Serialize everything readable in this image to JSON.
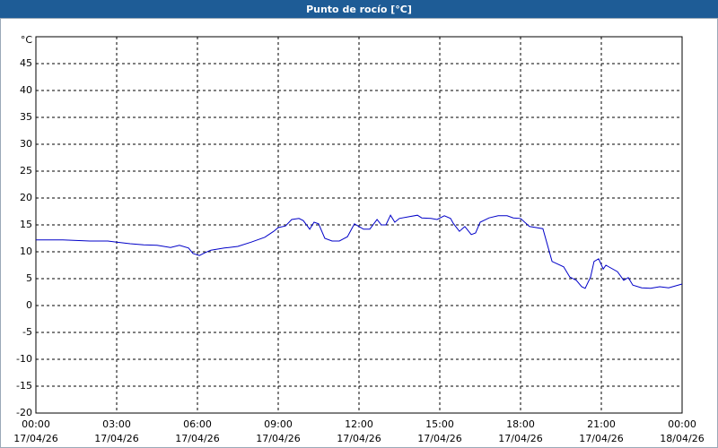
{
  "chart_data": {
    "type": "line",
    "title": "Punto de rocío [°C]",
    "y_unit": "°C",
    "ylim": [
      -20,
      50
    ],
    "yticks": [
      -20,
      -15,
      -10,
      -5,
      0,
      5,
      10,
      15,
      20,
      25,
      30,
      35,
      40,
      45
    ],
    "xlim": [
      0,
      24
    ],
    "xticks": [
      {
        "value": 0,
        "label": "00:00",
        "date": "17/04/26"
      },
      {
        "value": 3,
        "label": "03:00",
        "date": "17/04/26"
      },
      {
        "value": 6,
        "label": "06:00",
        "date": "17/04/26"
      },
      {
        "value": 9,
        "label": "09:00",
        "date": "17/04/26"
      },
      {
        "value": 12,
        "label": "12:00",
        "date": "17/04/26"
      },
      {
        "value": 15,
        "label": "15:00",
        "date": "17/04/26"
      },
      {
        "value": 18,
        "label": "18:00",
        "date": "17/04/26"
      },
      {
        "value": 21,
        "label": "21:00",
        "date": "17/04/26"
      },
      {
        "value": 24,
        "label": "00:00",
        "date": "18/04/26"
      }
    ],
    "grid": true,
    "series": [
      {
        "color": "#0000c8",
        "x": [
          0,
          1,
          2,
          2.67,
          3,
          3.5,
          4,
          4.5,
          5,
          5.33,
          5.67,
          5.83,
          6.07,
          6.27,
          6.5,
          7,
          7.5,
          8,
          8.5,
          8.83,
          9,
          9.27,
          9.5,
          9.77,
          9.93,
          10.17,
          10.33,
          10.5,
          10.73,
          11,
          11.27,
          11.57,
          11.83,
          12,
          12.17,
          12.4,
          12.67,
          12.83,
          13,
          13.17,
          13.33,
          13.5,
          13.83,
          14.17,
          14.33,
          14.67,
          14.9,
          15.17,
          15.4,
          15.5,
          15.73,
          15.93,
          16.17,
          16.33,
          16.5,
          16.83,
          17.17,
          17.5,
          17.73,
          18,
          18.33,
          18.83,
          19.17,
          19.6,
          19.83,
          20.07,
          20.27,
          20.4,
          20.6,
          20.73,
          20.9,
          21.07,
          21.17,
          21.6,
          21.83,
          22,
          22.17,
          22.5,
          22.83,
          23.17,
          23.5,
          24
        ],
        "values": [
          12.2,
          12.2,
          12.0,
          12.0,
          11.8,
          11.5,
          11.3,
          11.2,
          10.8,
          11.2,
          10.7,
          9.7,
          9.3,
          9.8,
          10.3,
          10.7,
          11.0,
          11.8,
          12.7,
          13.8,
          14.5,
          14.8,
          16.0,
          16.2,
          15.8,
          14.2,
          15.5,
          15.2,
          12.5,
          12.0,
          12.0,
          12.8,
          15.2,
          14.7,
          14.2,
          14.2,
          16.0,
          15.0,
          15.0,
          16.8,
          15.5,
          16.2,
          16.5,
          16.8,
          16.3,
          16.2,
          16.0,
          16.7,
          16.2,
          15.3,
          13.8,
          14.7,
          13.2,
          13.5,
          15.5,
          16.3,
          16.7,
          16.7,
          16.3,
          16.2,
          14.7,
          14.3,
          8.2,
          7.2,
          5.3,
          4.7,
          3.5,
          3.2,
          5.3,
          8.2,
          8.7,
          6.8,
          7.5,
          6.3,
          4.7,
          5.2,
          3.8,
          3.3,
          3.2,
          3.5,
          3.3,
          4.0
        ]
      }
    ]
  }
}
